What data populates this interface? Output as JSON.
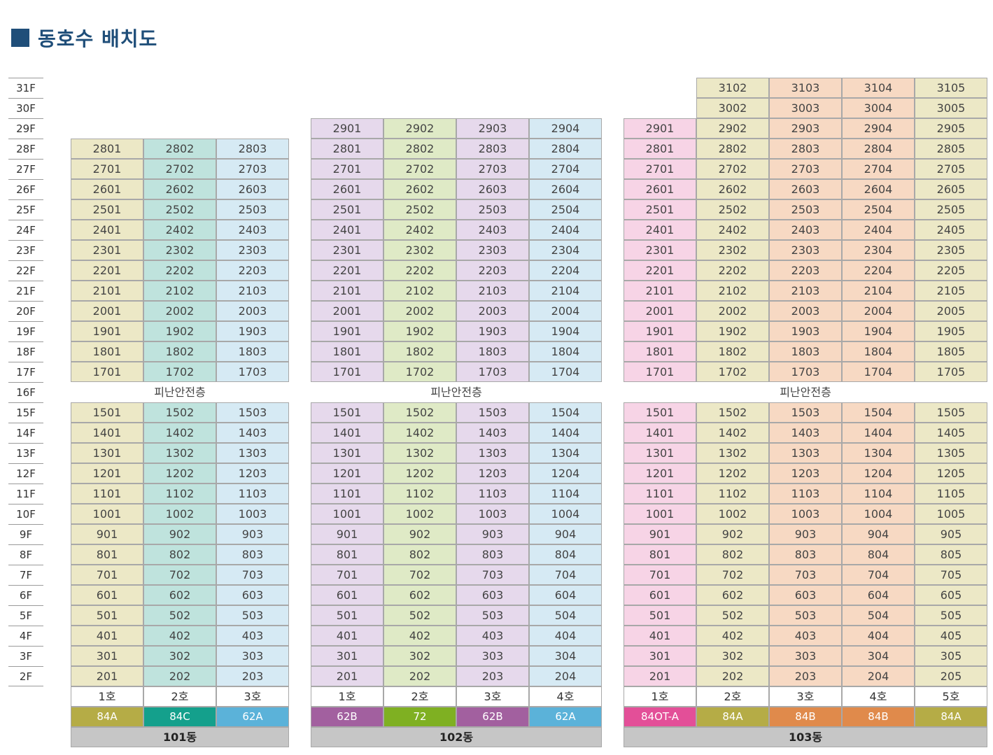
{
  "title": "동호수 배치도",
  "floors": [
    "31F",
    "30F",
    "29F",
    "28F",
    "27F",
    "26F",
    "25F",
    "24F",
    "23F",
    "22F",
    "21F",
    "20F",
    "19F",
    "18F",
    "17F",
    "16F",
    "15F",
    "14F",
    "13F",
    "12F",
    "11F",
    "10F",
    "9F",
    "8F",
    "7F",
    "6F",
    "5F",
    "4F",
    "3F",
    "2F"
  ],
  "refuge_label": "피난안전층",
  "buildings": [
    {
      "name": "101동",
      "top_floor": 28,
      "lines": [
        {
          "ho": "1호",
          "type": "84A",
          "cell_color": "#ece8c6",
          "type_color": "#b5ac46",
          "top_floor": 28
        },
        {
          "ho": "2호",
          "type": "84C",
          "cell_color": "#bfe3dd",
          "type_color": "#14a08c",
          "top_floor": 28
        },
        {
          "ho": "3호",
          "type": "62A",
          "cell_color": "#d6eaf4",
          "type_color": "#5bb2d9",
          "top_floor": 28
        }
      ]
    },
    {
      "name": "102동",
      "top_floor": 29,
      "lines": [
        {
          "ho": "1호",
          "type": "62B",
          "cell_color": "#e6d9ec",
          "type_color": "#a2609f",
          "top_floor": 29
        },
        {
          "ho": "2호",
          "type": "72",
          "cell_color": "#dfeac6",
          "type_color": "#7fb022",
          "top_floor": 29
        },
        {
          "ho": "3호",
          "type": "62B",
          "cell_color": "#e6d9ec",
          "type_color": "#a2609f",
          "top_floor": 29
        },
        {
          "ho": "4호",
          "type": "62A",
          "cell_color": "#d6eaf4",
          "type_color": "#5bb2d9",
          "top_floor": 29
        }
      ]
    },
    {
      "name": "103동",
      "top_floor": 31,
      "lines": [
        {
          "ho": "1호",
          "type": "84OT-A",
          "cell_color": "#f7d4e6",
          "type_color": "#e34f98",
          "top_floor": 29
        },
        {
          "ho": "2호",
          "type": "84A",
          "cell_color": "#ece8c6",
          "type_color": "#b5ac46",
          "top_floor": 31
        },
        {
          "ho": "3호",
          "type": "84B",
          "cell_color": "#f7d9c3",
          "type_color": "#e08a4b",
          "top_floor": 31
        },
        {
          "ho": "4호",
          "type": "84B",
          "cell_color": "#f7d9c3",
          "type_color": "#e08a4b",
          "top_floor": 31
        },
        {
          "ho": "5호",
          "type": "84A",
          "cell_color": "#ece8c6",
          "type_color": "#b5ac46",
          "top_floor": 31
        }
      ]
    }
  ]
}
